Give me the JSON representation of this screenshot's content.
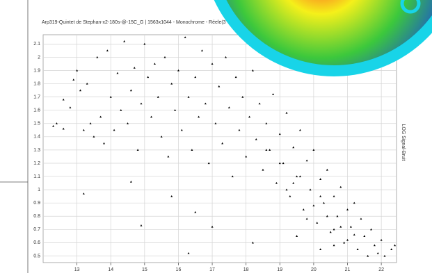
{
  "chart_data": {
    "type": "scatter",
    "title": "Arp319-Quintet de Stephan-x2-180s-@-15C_G | 1563x1044 - Monochrome - Réele(3",
    "y_label": "LOG Signal-Bruit",
    "color": "#000000",
    "grid": true,
    "xlim": [
      12,
      22.45
    ],
    "ylim": [
      0.45,
      2.17
    ],
    "xticks": [
      13,
      14,
      15,
      16,
      17,
      18,
      19,
      20,
      21,
      22
    ],
    "yticks": [
      0.5,
      0.6,
      0.7,
      0.8,
      0.9,
      1,
      1.1,
      1.2,
      1.3,
      1.4,
      1.5,
      1.6,
      1.7,
      1.8,
      1.9,
      2,
      2.1
    ],
    "x": [
      12.3,
      12.4,
      12.6,
      12.6,
      12.8,
      12.9,
      13.0,
      13.1,
      13.3,
      13.2,
      13.4,
      13.5,
      13.6,
      13.7,
      13.8,
      13.9,
      14.0,
      14.1,
      14.2,
      14.3,
      14.4,
      14.5,
      14.6,
      14.7,
      14.8,
      14.9,
      15.0,
      15.1,
      15.2,
      15.3,
      15.4,
      15.5,
      15.6,
      15.7,
      15.8,
      15.9,
      16.0,
      16.1,
      16.2,
      16.3,
      16.4,
      16.5,
      16.6,
      16.7,
      16.8,
      16.9,
      17.0,
      17.1,
      17.2,
      17.3,
      17.4,
      17.5,
      17.6,
      17.7,
      17.8,
      17.9,
      18.0,
      18.1,
      18.2,
      18.3,
      18.4,
      18.5,
      18.6,
      18.7,
      18.8,
      18.9,
      19.0,
      19.1,
      19.2,
      19.3,
      19.4,
      19.5,
      19.6,
      19.7,
      19.8,
      19.9,
      20.0,
      20.1,
      20.2,
      20.3,
      20.4,
      20.5,
      20.6,
      20.7,
      20.8,
      20.9,
      21.0,
      21.1,
      21.2,
      21.3,
      21.4,
      21.5,
      21.6,
      21.7,
      21.8,
      21.9,
      22.0,
      22.1,
      22.3,
      22.4,
      13.2,
      14.6,
      14.9,
      16.3,
      16.5,
      17.0,
      18.2,
      15.8,
      19.5,
      20.2,
      19.8,
      20.6,
      19.2,
      19.6,
      20.0,
      20.4,
      20.8,
      21.2,
      19.0,
      18.6,
      20.6,
      21.0,
      19.4,
      20.2
    ],
    "values": [
      1.48,
      1.5,
      1.46,
      1.68,
      1.62,
      1.83,
      1.9,
      1.75,
      1.8,
      1.45,
      1.5,
      1.4,
      2.0,
      1.55,
      1.35,
      2.05,
      1.7,
      1.45,
      1.88,
      1.6,
      2.12,
      1.5,
      1.75,
      1.92,
      1.3,
      1.65,
      2.1,
      1.85,
      1.55,
      1.95,
      1.7,
      1.4,
      2.0,
      1.25,
      1.8,
      1.6,
      1.9,
      1.45,
      2.15,
      1.7,
      1.3,
      1.85,
      1.55,
      2.05,
      1.65,
      1.2,
      1.95,
      1.5,
      1.78,
      1.35,
      2.0,
      1.62,
      1.1,
      1.85,
      1.45,
      1.7,
      1.25,
      1.55,
      1.9,
      1.38,
      1.65,
      1.15,
      1.5,
      1.3,
      1.72,
      1.05,
      1.42,
      1.2,
      1.58,
      0.95,
      1.32,
      1.1,
      1.45,
      0.85,
      1.22,
      1.0,
      1.3,
      0.75,
      1.08,
      0.9,
      1.15,
      0.68,
      0.95,
      0.8,
      1.02,
      0.6,
      0.85,
      0.72,
      0.9,
      0.55,
      0.78,
      0.65,
      0.5,
      0.7,
      0.58,
      0.52,
      0.62,
      0.5,
      0.55,
      0.58,
      0.97,
      1.06,
      0.73,
      0.52,
      0.83,
      0.72,
      0.6,
      0.95,
      0.65,
      0.55,
      0.78,
      0.58,
      1.0,
      1.1,
      0.88,
      0.8,
      0.72,
      0.66,
      1.2,
      1.3,
      0.7,
      0.62,
      1.05,
      0.95
    ]
  }
}
